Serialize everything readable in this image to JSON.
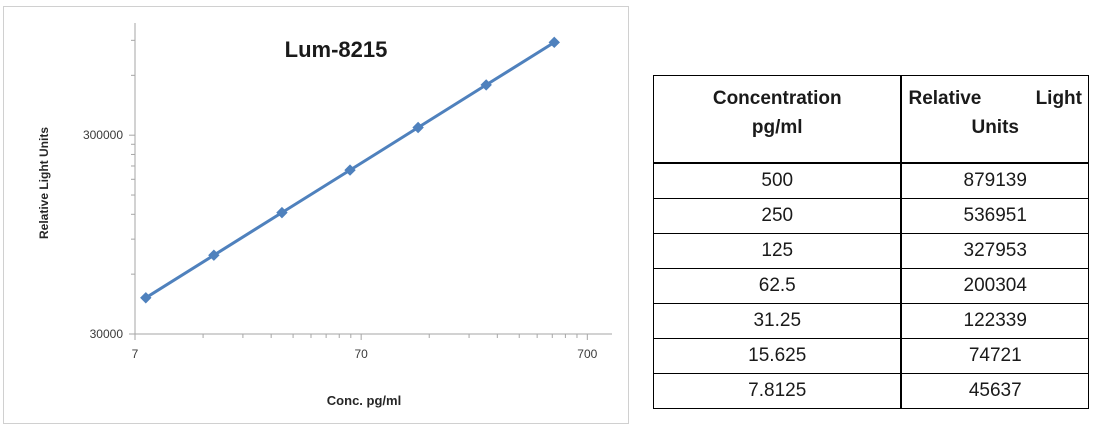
{
  "chart_data": {
    "type": "scatter",
    "title": "Lum-8215",
    "xlabel": "Conc. pg/ml",
    "ylabel": "Relative Light Units",
    "x_scale": "log",
    "y_scale": "log",
    "xlim": [
      7,
      900
    ],
    "ylim": [
      30000,
      1100000
    ],
    "x_ticks": [
      "7",
      "70",
      "700"
    ],
    "y_ticks": [
      "30000",
      "300000"
    ],
    "grid": false,
    "legend": "none",
    "color": "#4f81bd",
    "series": [
      {
        "x": [
          7.8125,
          15.625,
          31.25,
          62.5,
          125,
          250,
          500
        ],
        "y": [
          45637,
          74721,
          122339,
          200304,
          327953,
          536951,
          879139
        ]
      }
    ]
  },
  "table": {
    "headers": [
      {
        "line1": "Concentration",
        "line2": "pg/ml"
      },
      {
        "line1a": "Relative",
        "line1b": "Light",
        "line2": "Units"
      }
    ],
    "rows": [
      [
        "500",
        "879139"
      ],
      [
        "250",
        "536951"
      ],
      [
        "125",
        "327953"
      ],
      [
        "62.5",
        "200304"
      ],
      [
        "31.25",
        "122339"
      ],
      [
        "15.625",
        "74721"
      ],
      [
        "7.8125",
        "45637"
      ]
    ]
  }
}
